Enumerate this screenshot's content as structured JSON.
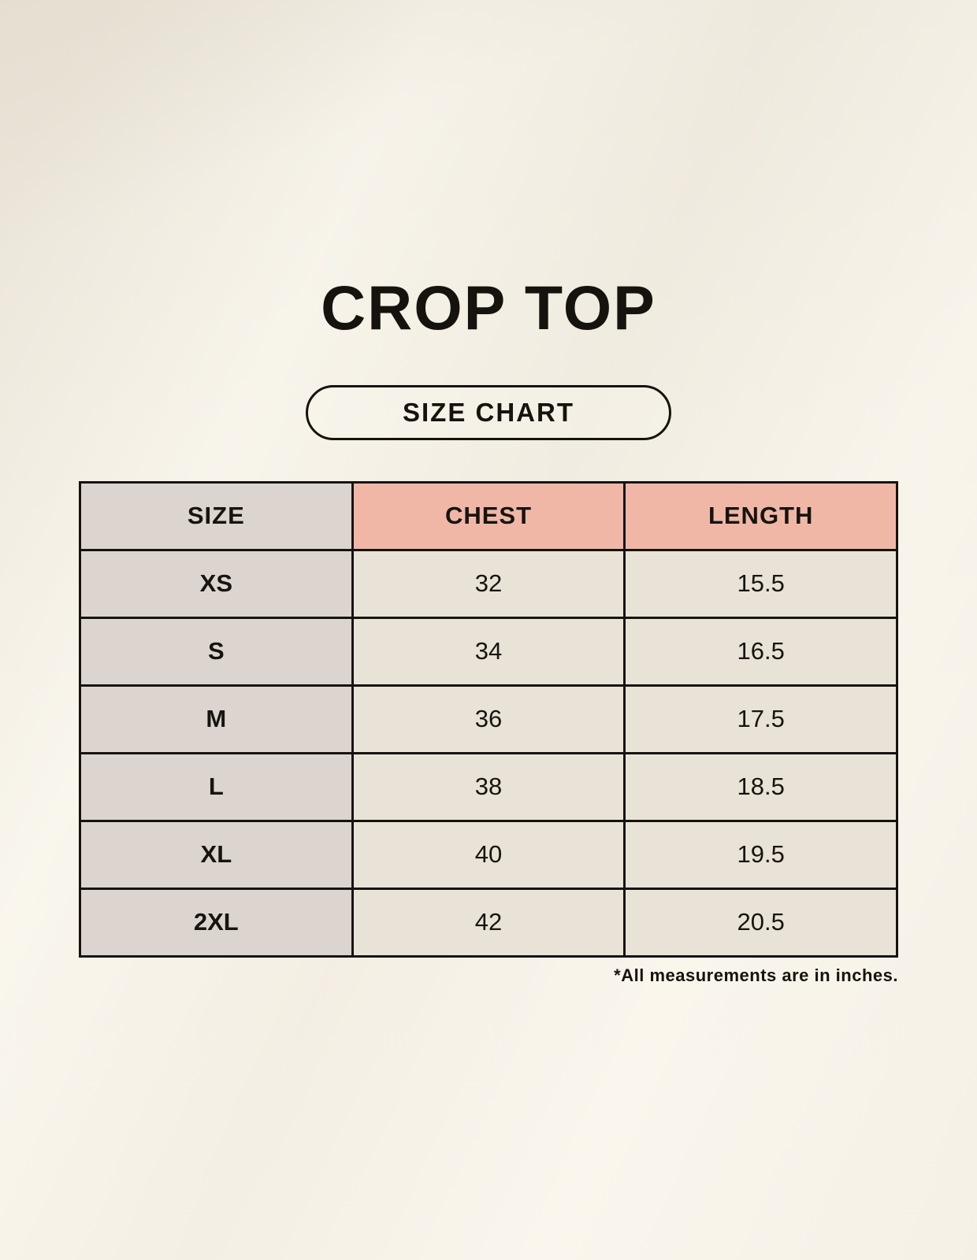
{
  "header": {
    "title": "CROP TOP",
    "badge_label": "SIZE CHART"
  },
  "table": {
    "columns": [
      "SIZE",
      "CHEST",
      "LENGTH"
    ],
    "rows": [
      [
        "XS",
        "32",
        "15.5"
      ],
      [
        "S",
        "34",
        "16.5"
      ],
      [
        "M",
        "36",
        "17.5"
      ],
      [
        "L",
        "38",
        "18.5"
      ],
      [
        "XL",
        "40",
        "19.5"
      ],
      [
        "2XL",
        "42",
        "20.5"
      ]
    ]
  },
  "footnote": "*All measurements are in inches.",
  "colors": {
    "background": "#f4f0e5",
    "header_pink": "#f0b7a7",
    "size_column_taupe": "#dcd5cf",
    "data_cell_cream": "#e9e3d7",
    "ink": "#16130e"
  },
  "chart_data": {
    "type": "table",
    "title": "CROP TOP",
    "columns": [
      "SIZE",
      "CHEST",
      "LENGTH"
    ],
    "rows": [
      {
        "size": "XS",
        "chest": 32,
        "length": 15.5
      },
      {
        "size": "S",
        "chest": 34,
        "length": 16.5
      },
      {
        "size": "M",
        "chest": 36,
        "length": 17.5
      },
      {
        "size": "L",
        "chest": 38,
        "length": 18.5
      },
      {
        "size": "XL",
        "chest": 40,
        "length": 19.5
      },
      {
        "size": "2XL",
        "chest": 42,
        "length": 20.5
      }
    ],
    "units": "inches",
    "note": "*All measurements are in inches."
  }
}
